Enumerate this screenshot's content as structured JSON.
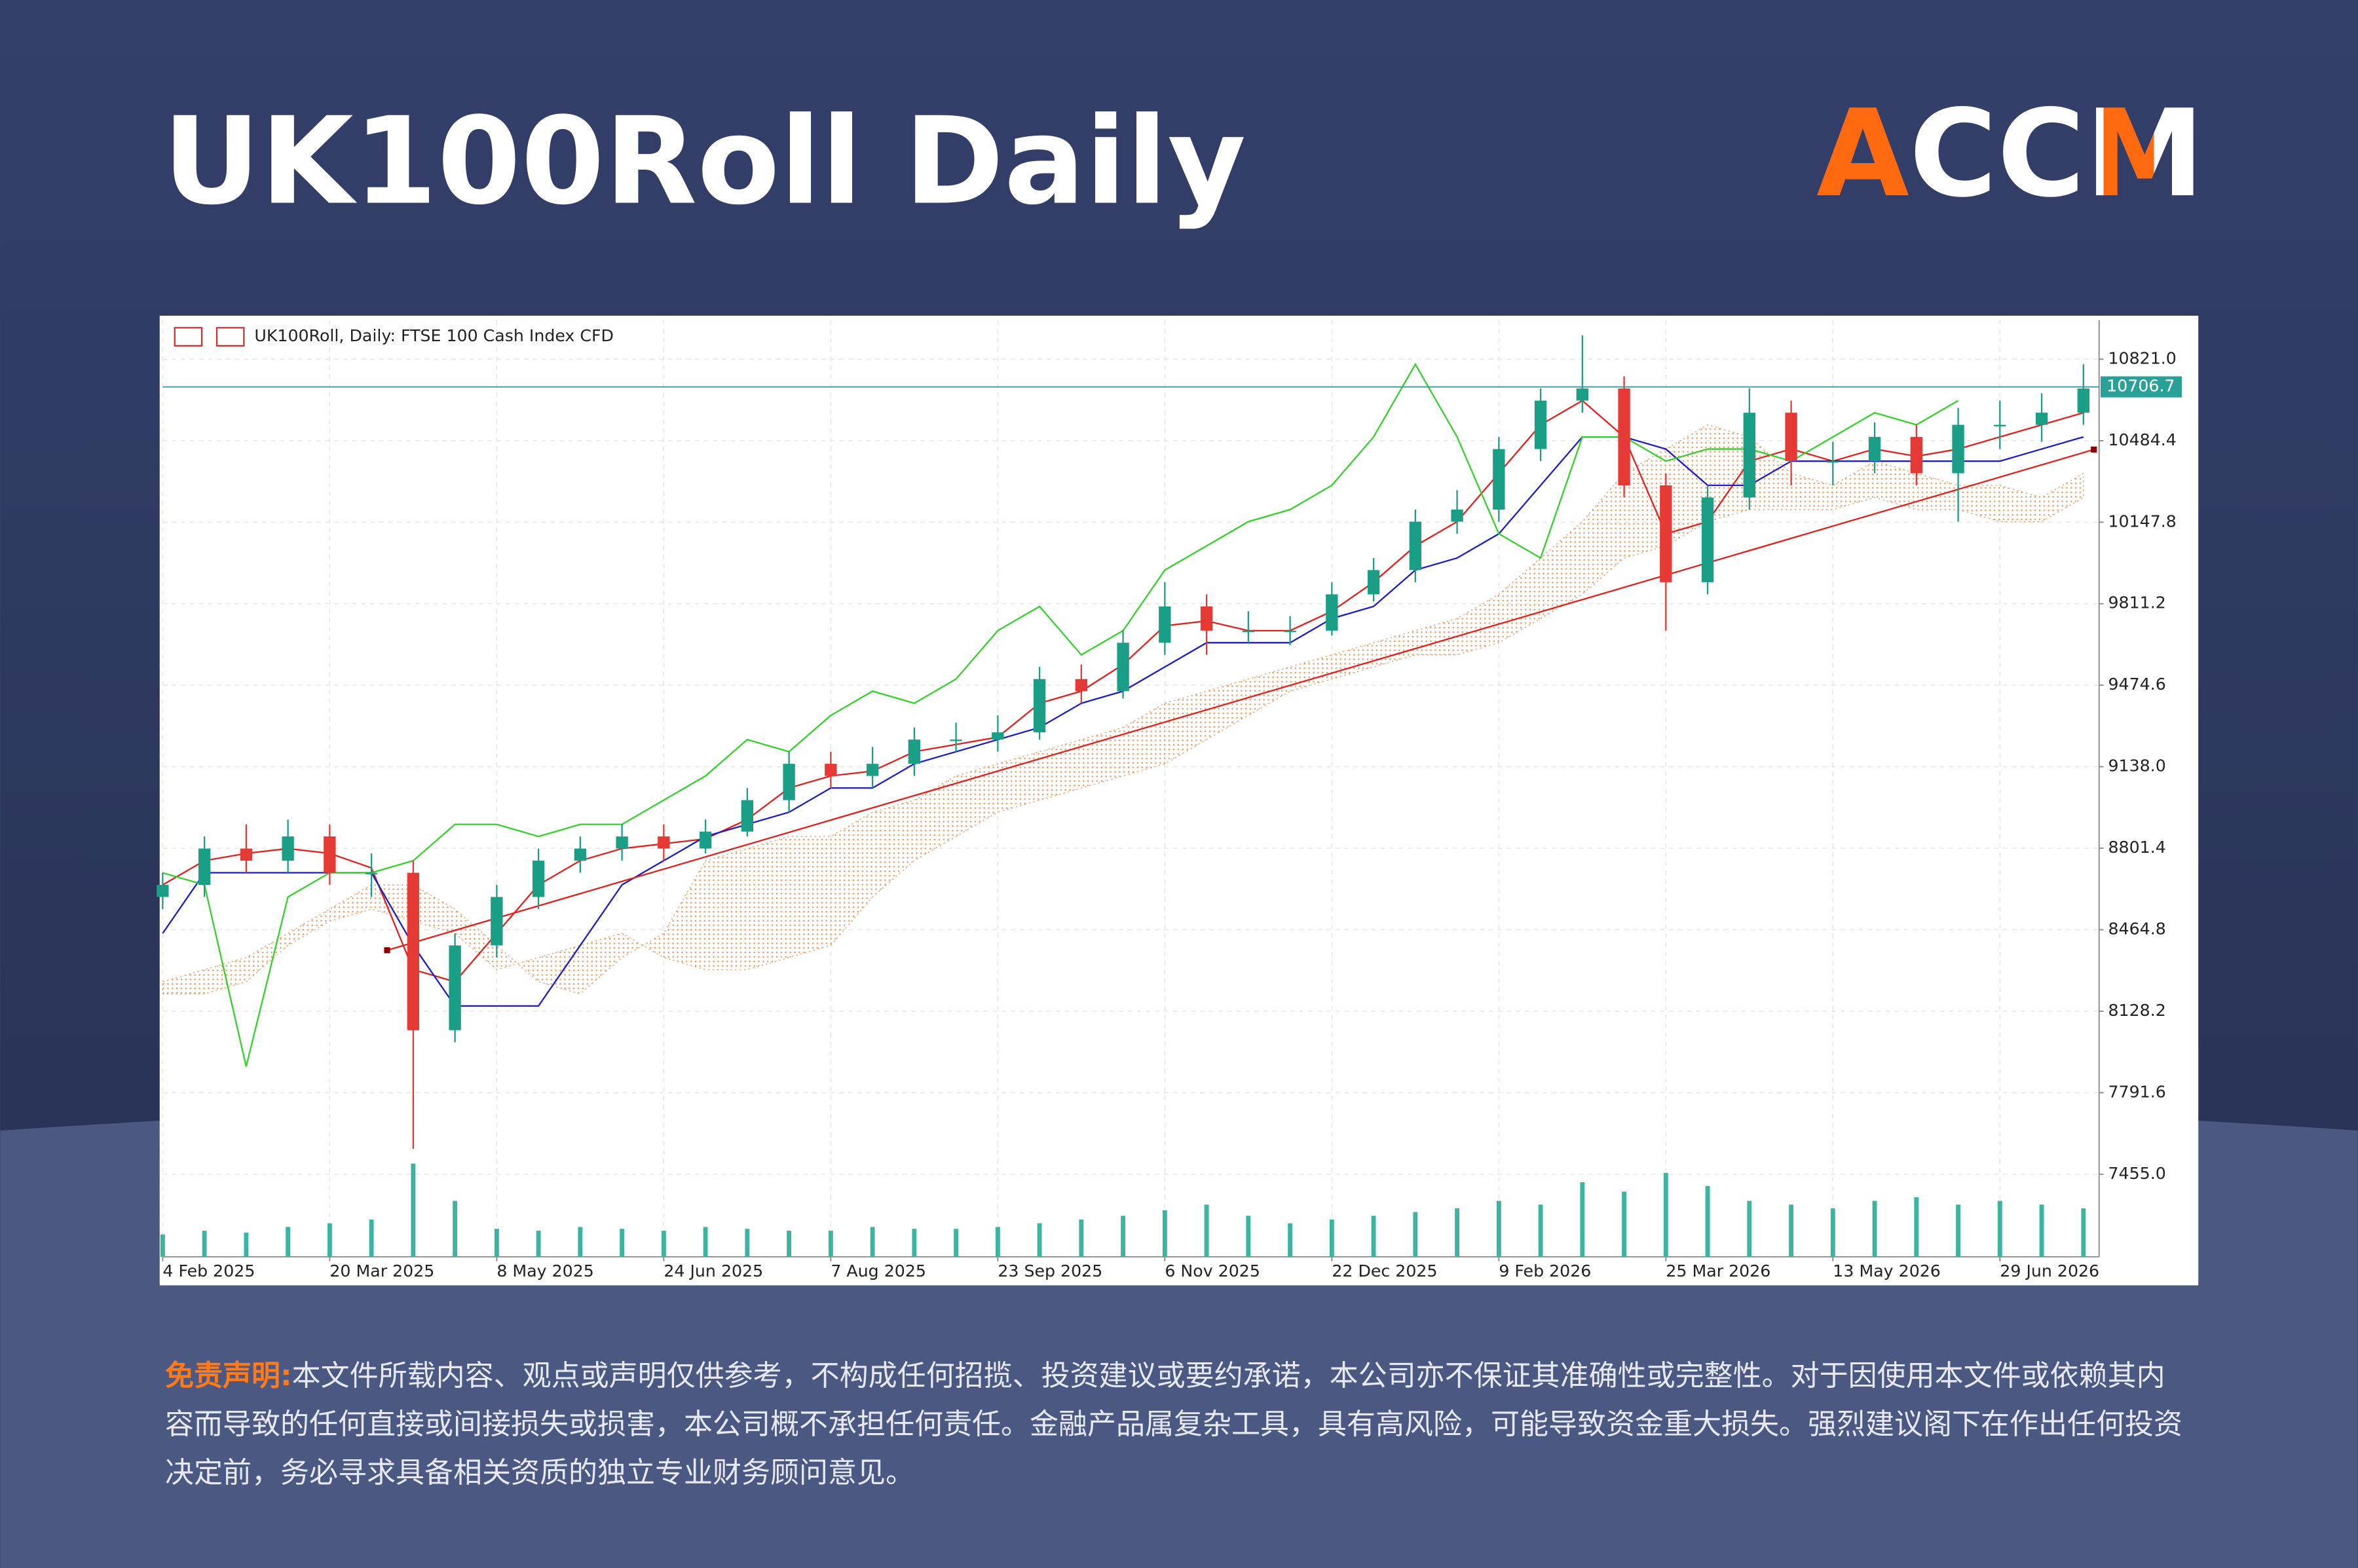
{
  "header": {
    "title": "UK100Roll Daily",
    "logo": "ACCM"
  },
  "chart_data": {
    "type": "candlestick",
    "title": "UK100Roll, Daily:  FTSE 100 Cash Index CFD",
    "x": [
      0,
      8,
      16,
      24,
      32,
      40,
      48,
      56,
      64,
      72,
      80,
      88,
      96,
      104,
      112,
      120,
      128,
      136,
      144,
      152,
      160,
      168,
      176,
      184,
      192,
      200,
      208,
      216,
      224,
      232,
      240,
      248,
      256,
      264,
      272,
      280,
      288,
      296,
      304,
      312,
      320,
      328,
      336,
      344,
      352,
      360,
      368
    ],
    "open": [
      8600,
      8650,
      8800,
      8750,
      8850,
      8700,
      8700,
      8050,
      8400,
      8600,
      8750,
      8800,
      8850,
      8800,
      8870,
      9000,
      9150,
      9100,
      9150,
      9250,
      9250,
      9280,
      9500,
      9450,
      9650,
      9800,
      9700,
      9700,
      9700,
      9850,
      9950,
      10150,
      10200,
      10450,
      10650,
      10700,
      10300,
      9900,
      10250,
      10600,
      10400,
      10400,
      10500,
      10350,
      10550,
      10550,
      10600
    ],
    "high": [
      8700,
      8850,
      8900,
      8920,
      8900,
      8780,
      8750,
      8450,
      8650,
      8800,
      8850,
      8900,
      8900,
      8920,
      9050,
      9200,
      9200,
      9220,
      9300,
      9320,
      9350,
      9550,
      9560,
      9700,
      9900,
      9850,
      9780,
      9760,
      9900,
      10000,
      10200,
      10280,
      10500,
      10700,
      10920,
      10750,
      10350,
      10300,
      10700,
      10650,
      10480,
      10560,
      10550,
      10620,
      10650,
      10680,
      10800
    ],
    "low": [
      8550,
      8600,
      8700,
      8700,
      8650,
      8600,
      7560,
      8000,
      8350,
      8550,
      8700,
      8750,
      8750,
      8780,
      8850,
      8950,
      9050,
      9050,
      9100,
      9200,
      9200,
      9250,
      9400,
      9420,
      9600,
      9600,
      9650,
      9640,
      9680,
      9820,
      9900,
      10100,
      10150,
      10400,
      10600,
      10250,
      9700,
      9850,
      10200,
      10300,
      10300,
      10350,
      10300,
      10150,
      10450,
      10480,
      10550
    ],
    "close": [
      8650,
      8800,
      8750,
      8850,
      8700,
      8700,
      8050,
      8400,
      8600,
      8750,
      8800,
      8850,
      8800,
      8870,
      9000,
      9150,
      9100,
      9150,
      9250,
      9250,
      9280,
      9500,
      9450,
      9650,
      9800,
      9700,
      9700,
      9700,
      9850,
      9950,
      10150,
      10200,
      10450,
      10650,
      10700,
      10300,
      9900,
      10250,
      10600,
      10400,
      10400,
      10500,
      10350,
      10550,
      10550,
      10600,
      10700
    ],
    "up_color": "#1a9e86",
    "down_color": "#e53935",
    "lines": [
      {
        "color": "#e0201c",
        "values": [
          8650,
          8750,
          8780,
          8800,
          8780,
          8720,
          8300,
          8250,
          8450,
          8650,
          8750,
          8800,
          8820,
          8840,
          8920,
          9050,
          9100,
          9120,
          9200,
          9230,
          9260,
          9400,
          9450,
          9560,
          9720,
          9740,
          9700,
          9700,
          9780,
          9900,
          10050,
          10150,
          10350,
          10550,
          10650,
          10500,
          10100,
          10150,
          10400,
          10450,
          10400,
          10450,
          10420,
          10450,
          10500,
          10550,
          10600
        ]
      },
      {
        "color": "#1c1cc8",
        "values": [
          8450,
          8700,
          8700,
          8700,
          8700,
          8700,
          8400,
          8150,
          8150,
          8150,
          8400,
          8650,
          8750,
          8850,
          8900,
          8950,
          9050,
          9050,
          9150,
          9200,
          9250,
          9300,
          9400,
          9450,
          9550,
          9650,
          9650,
          9650,
          9750,
          9800,
          9950,
          10000,
          10100,
          10300,
          10500,
          10500,
          10450,
          10300,
          10300,
          10400,
          10400,
          10400,
          10400,
          10400,
          10400,
          10450,
          10500
        ]
      },
      {
        "color": "#33d02a",
        "values": [
          8700,
          8650,
          7900,
          8600,
          8700,
          8700,
          8750,
          8900,
          8900,
          8850,
          8900,
          8900,
          9000,
          9100,
          9250,
          9200,
          9350,
          9450,
          9400,
          9500,
          9700,
          9800,
          9600,
          9700,
          9950,
          10050,
          10150,
          10200,
          10300,
          10500,
          10800,
          10500,
          10100,
          10000,
          10500,
          10500,
          10400,
          10450,
          10450,
          10400,
          10500,
          10600,
          10550,
          10650,
          null,
          null,
          null
        ]
      }
    ],
    "cloud": {
      "color": "#e59a60",
      "span_a": [
        8250,
        8300,
        8350,
        8450,
        8550,
        8650,
        8650,
        8550,
        8400,
        8250,
        8200,
        8350,
        8450,
        8750,
        8800,
        8850,
        8850,
        8950,
        9000,
        9100,
        9150,
        9200,
        9250,
        9300,
        9400,
        9450,
        9500,
        9550,
        9600,
        9650,
        9700,
        9750,
        9850,
        10000,
        10150,
        10350,
        10450,
        10550,
        10500,
        10350,
        10300,
        10400,
        10350,
        10300,
        10300,
        10250,
        10350
      ],
      "span_b": [
        8200,
        8200,
        8250,
        8400,
        8500,
        8550,
        8500,
        8450,
        8300,
        8350,
        8400,
        8450,
        8350,
        8300,
        8300,
        8350,
        8400,
        8600,
        8750,
        8850,
        8950,
        9000,
        9050,
        9100,
        9150,
        9250,
        9350,
        9450,
        9500,
        9550,
        9600,
        9600,
        9650,
        9750,
        9850,
        10000,
        10050,
        10150,
        10200,
        10200,
        10200,
        10250,
        10200,
        10200,
        10150,
        10150,
        10250
      ]
    },
    "volume": {
      "color": "#3cb4a0",
      "values": [
        12,
        14,
        13,
        16,
        18,
        20,
        50,
        30,
        15,
        14,
        16,
        15,
        14,
        16,
        15,
        14,
        14,
        16,
        15,
        15,
        16,
        18,
        20,
        22,
        25,
        28,
        22,
        18,
        20,
        22,
        24,
        26,
        30,
        28,
        40,
        35,
        45,
        38,
        30,
        28,
        26,
        30,
        32,
        28,
        30,
        28,
        26
      ]
    },
    "trendline": {
      "color": "#e0201c",
      "x": [
        43,
        370
      ],
      "values": [
        8380,
        10448
      ]
    },
    "last_price": {
      "value": 10706.7,
      "color": "#2aa198"
    },
    "xlim": [
      0,
      371
    ],
    "xticks": [
      {
        "value": 0,
        "label": "4 Feb 2025"
      },
      {
        "value": 32,
        "label": "20 Mar 2025"
      },
      {
        "value": 64,
        "label": "8 May 2025"
      },
      {
        "value": 96,
        "label": "24 Jun 2025"
      },
      {
        "value": 128,
        "label": "7 Aug 2025"
      },
      {
        "value": 160,
        "label": "23 Sep 2025"
      },
      {
        "value": 192,
        "label": "6 Nov 2025"
      },
      {
        "value": 224,
        "label": "22 Dec 2025"
      },
      {
        "value": 256,
        "label": "9 Feb 2026"
      },
      {
        "value": 288,
        "label": "25 Mar 2026"
      },
      {
        "value": 320,
        "label": "13 May 2026"
      },
      {
        "value": 352,
        "label": "29 Jun 2026"
      }
    ],
    "ylim": [
      7114,
      10982
    ],
    "yticks": [
      {
        "value": 7455,
        "label": "7455.0"
      },
      7791.6,
      8128.2,
      8464.8,
      8801.4,
      {
        "value": 9138,
        "label": "9138.0"
      },
      9474.6,
      9811.2,
      10147.8,
      10484.4,
      {
        "value": 10821,
        "label": "10821.0"
      }
    ],
    "grid": true
  },
  "disclaimer": {
    "label": "免责声明:",
    "text": "本文件所载内容、观点或声明仅供参考，不构成任何招揽、投资建议或要约承诺，本公司亦不保证其准确性或完整性。对于因使用本文件或依赖其内容而导致的任何直接或间接损失或损害，本公司概不承担任何责任。金融产品属复杂工具，具有高风险，可能导致资金重大损失。强烈建议阁下在作出任何投资决定前，务必寻求具备相关资质的独立专业财务顾问意见。"
  }
}
